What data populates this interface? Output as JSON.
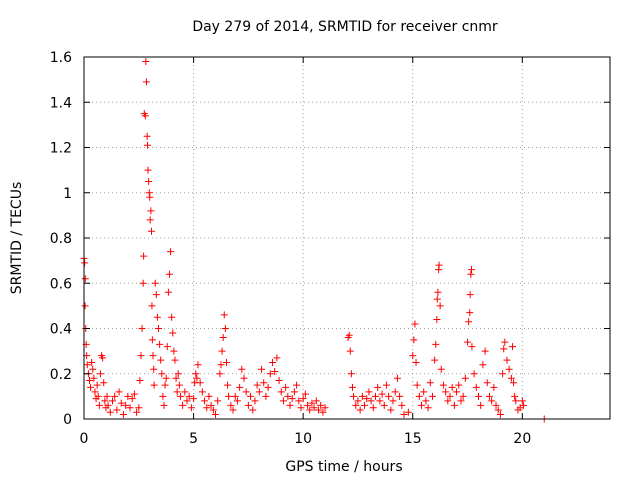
{
  "chart_data": {
    "type": "scatter",
    "title": "Day 279 of 2014, SRMTID for receiver cnmr",
    "xlabel": "GPS time / hours",
    "ylabel": "SRMTID / TECUs",
    "xlim": [
      0,
      24
    ],
    "ylim": [
      0,
      1.6
    ],
    "grid": true,
    "marker": "+",
    "marker_color": "#ff0000",
    "x_ticks": [
      {
        "value": 0,
        "label": "0"
      },
      {
        "value": 5,
        "label": "5"
      },
      {
        "value": 10,
        "label": "10"
      },
      {
        "value": 15,
        "label": "15"
      },
      {
        "value": 20,
        "label": "20"
      }
    ],
    "y_ticks": [
      {
        "value": 0,
        "label": "0"
      },
      {
        "value": 0.2,
        "label": "0.2"
      },
      {
        "value": 0.4,
        "label": "0.4"
      },
      {
        "value": 0.6,
        "label": "0.6"
      },
      {
        "value": 0.8,
        "label": "0.8"
      },
      {
        "value": 1.0,
        "label": "1"
      },
      {
        "value": 1.2,
        "label": "1.2"
      },
      {
        "value": 1.4,
        "label": "1.4"
      },
      {
        "value": 1.6,
        "label": "1.6"
      }
    ],
    "points": [
      [
        0.0,
        0.71
      ],
      [
        0.03,
        0.69
      ],
      [
        0.06,
        0.62
      ],
      [
        0.05,
        0.5
      ],
      [
        0.08,
        0.4
      ],
      [
        0.1,
        0.33
      ],
      [
        0.12,
        0.28
      ],
      [
        0.15,
        0.24
      ],
      [
        0.2,
        0.2
      ],
      [
        0.25,
        0.17
      ],
      [
        0.3,
        0.14
      ],
      [
        0.35,
        0.25
      ],
      [
        0.4,
        0.22
      ],
      [
        0.45,
        0.18
      ],
      [
        0.5,
        0.12
      ],
      [
        0.55,
        0.09
      ],
      [
        0.6,
        0.15
      ],
      [
        0.65,
        0.1
      ],
      [
        0.7,
        0.06
      ],
      [
        0.75,
        0.2
      ],
      [
        0.8,
        0.28
      ],
      [
        0.85,
        0.27
      ],
      [
        0.9,
        0.16
      ],
      [
        0.95,
        0.08
      ],
      [
        1.0,
        0.05
      ],
      [
        1.05,
        0.1
      ],
      [
        1.1,
        0.06
      ],
      [
        1.2,
        0.03
      ],
      [
        1.3,
        0.08
      ],
      [
        1.4,
        0.1
      ],
      [
        1.5,
        0.04
      ],
      [
        1.6,
        0.12
      ],
      [
        1.7,
        0.07
      ],
      [
        1.8,
        0.02
      ],
      [
        1.9,
        0.06
      ],
      [
        2.0,
        0.1
      ],
      [
        2.1,
        0.05
      ],
      [
        2.2,
        0.09
      ],
      [
        2.3,
        0.11
      ],
      [
        2.4,
        0.03
      ],
      [
        2.5,
        0.05
      ],
      [
        2.55,
        0.17
      ],
      [
        2.6,
        0.28
      ],
      [
        2.65,
        0.4
      ],
      [
        2.7,
        0.6
      ],
      [
        2.72,
        0.72
      ],
      [
        2.75,
        1.35
      ],
      [
        2.8,
        1.34
      ],
      [
        2.82,
        1.58
      ],
      [
        2.85,
        1.49
      ],
      [
        2.88,
        1.25
      ],
      [
        2.9,
        1.21
      ],
      [
        2.92,
        1.1
      ],
      [
        2.95,
        1.05
      ],
      [
        2.98,
        1.0
      ],
      [
        3.0,
        0.98
      ],
      [
        3.02,
        0.88
      ],
      [
        3.05,
        0.92
      ],
      [
        3.08,
        0.83
      ],
      [
        3.1,
        0.5
      ],
      [
        3.12,
        0.35
      ],
      [
        3.15,
        0.28
      ],
      [
        3.18,
        0.22
      ],
      [
        3.2,
        0.15
      ],
      [
        3.25,
        0.6
      ],
      [
        3.3,
        0.55
      ],
      [
        3.35,
        0.45
      ],
      [
        3.4,
        0.4
      ],
      [
        3.45,
        0.33
      ],
      [
        3.5,
        0.26
      ],
      [
        3.55,
        0.2
      ],
      [
        3.6,
        0.1
      ],
      [
        3.65,
        0.06
      ],
      [
        3.7,
        0.15
      ],
      [
        3.75,
        0.18
      ],
      [
        3.8,
        0.32
      ],
      [
        3.85,
        0.56
      ],
      [
        3.9,
        0.64
      ],
      [
        3.95,
        0.74
      ],
      [
        4.0,
        0.45
      ],
      [
        4.05,
        0.38
      ],
      [
        4.1,
        0.3
      ],
      [
        4.15,
        0.26
      ],
      [
        4.2,
        0.18
      ],
      [
        4.25,
        0.12
      ],
      [
        4.3,
        0.2
      ],
      [
        4.35,
        0.15
      ],
      [
        4.4,
        0.1
      ],
      [
        4.5,
        0.06
      ],
      [
        4.6,
        0.12
      ],
      [
        4.7,
        0.08
      ],
      [
        4.8,
        0.1
      ],
      [
        4.9,
        0.05
      ],
      [
        5.0,
        0.09
      ],
      [
        5.05,
        0.16
      ],
      [
        5.1,
        0.2
      ],
      [
        5.15,
        0.18
      ],
      [
        5.2,
        0.24
      ],
      [
        5.3,
        0.16
      ],
      [
        5.4,
        0.12
      ],
      [
        5.5,
        0.08
      ],
      [
        5.6,
        0.05
      ],
      [
        5.7,
        0.1
      ],
      [
        5.8,
        0.06
      ],
      [
        5.9,
        0.04
      ],
      [
        6.0,
        0.02
      ],
      [
        6.1,
        0.08
      ],
      [
        6.2,
        0.2
      ],
      [
        6.25,
        0.24
      ],
      [
        6.3,
        0.3
      ],
      [
        6.35,
        0.36
      ],
      [
        6.4,
        0.46
      ],
      [
        6.45,
        0.4
      ],
      [
        6.5,
        0.25
      ],
      [
        6.55,
        0.15
      ],
      [
        6.6,
        0.1
      ],
      [
        6.7,
        0.06
      ],
      [
        6.8,
        0.04
      ],
      [
        6.9,
        0.1
      ],
      [
        7.0,
        0.08
      ],
      [
        7.1,
        0.14
      ],
      [
        7.2,
        0.22
      ],
      [
        7.3,
        0.18
      ],
      [
        7.4,
        0.12
      ],
      [
        7.5,
        0.06
      ],
      [
        7.6,
        0.1
      ],
      [
        7.7,
        0.04
      ],
      [
        7.8,
        0.08
      ],
      [
        7.9,
        0.15
      ],
      [
        8.0,
        0.12
      ],
      [
        8.1,
        0.22
      ],
      [
        8.2,
        0.16
      ],
      [
        8.3,
        0.1
      ],
      [
        8.4,
        0.14
      ],
      [
        8.5,
        0.2
      ],
      [
        8.6,
        0.25
      ],
      [
        8.7,
        0.21
      ],
      [
        8.8,
        0.27
      ],
      [
        8.9,
        0.17
      ],
      [
        9.0,
        0.12
      ],
      [
        9.1,
        0.08
      ],
      [
        9.2,
        0.14
      ],
      [
        9.3,
        0.1
      ],
      [
        9.4,
        0.06
      ],
      [
        9.5,
        0.09
      ],
      [
        9.6,
        0.12
      ],
      [
        9.7,
        0.15
      ],
      [
        9.8,
        0.08
      ],
      [
        9.9,
        0.05
      ],
      [
        10.0,
        0.09
      ],
      [
        10.1,
        0.11
      ],
      [
        10.2,
        0.06
      ],
      [
        10.3,
        0.04
      ],
      [
        10.4,
        0.07
      ],
      [
        10.5,
        0.05
      ],
      [
        10.6,
        0.08
      ],
      [
        10.7,
        0.04
      ],
      [
        10.8,
        0.06
      ],
      [
        10.9,
        0.03
      ],
      [
        11.0,
        0.05
      ],
      [
        12.05,
        0.36
      ],
      [
        12.1,
        0.37
      ],
      [
        12.15,
        0.3
      ],
      [
        12.2,
        0.2
      ],
      [
        12.25,
        0.14
      ],
      [
        12.3,
        0.1
      ],
      [
        12.4,
        0.06
      ],
      [
        12.5,
        0.08
      ],
      [
        12.6,
        0.04
      ],
      [
        12.7,
        0.1
      ],
      [
        12.8,
        0.06
      ],
      [
        12.9,
        0.09
      ],
      [
        13.0,
        0.12
      ],
      [
        13.1,
        0.08
      ],
      [
        13.2,
        0.05
      ],
      [
        13.3,
        0.1
      ],
      [
        13.4,
        0.14
      ],
      [
        13.5,
        0.08
      ],
      [
        13.6,
        0.11
      ],
      [
        13.7,
        0.06
      ],
      [
        13.8,
        0.15
      ],
      [
        13.9,
        0.1
      ],
      [
        14.0,
        0.04
      ],
      [
        14.1,
        0.08
      ],
      [
        14.2,
        0.12
      ],
      [
        14.3,
        0.18
      ],
      [
        14.4,
        0.1
      ],
      [
        14.5,
        0.06
      ],
      [
        14.6,
        0.02
      ],
      [
        14.8,
        0.03
      ],
      [
        15.0,
        0.28
      ],
      [
        15.05,
        0.35
      ],
      [
        15.1,
        0.42
      ],
      [
        15.15,
        0.25
      ],
      [
        15.2,
        0.15
      ],
      [
        15.3,
        0.1
      ],
      [
        15.4,
        0.06
      ],
      [
        15.5,
        0.12
      ],
      [
        15.6,
        0.08
      ],
      [
        15.7,
        0.05
      ],
      [
        15.8,
        0.16
      ],
      [
        15.9,
        0.1
      ],
      [
        16.0,
        0.26
      ],
      [
        16.05,
        0.33
      ],
      [
        16.1,
        0.44
      ],
      [
        16.12,
        0.53
      ],
      [
        16.15,
        0.56
      ],
      [
        16.18,
        0.66
      ],
      [
        16.2,
        0.68
      ],
      [
        16.25,
        0.5
      ],
      [
        16.3,
        0.22
      ],
      [
        16.4,
        0.15
      ],
      [
        16.5,
        0.12
      ],
      [
        16.6,
        0.08
      ],
      [
        16.7,
        0.1
      ],
      [
        16.8,
        0.14
      ],
      [
        16.9,
        0.06
      ],
      [
        17.0,
        0.12
      ],
      [
        17.1,
        0.15
      ],
      [
        17.2,
        0.08
      ],
      [
        17.3,
        0.1
      ],
      [
        17.4,
        0.18
      ],
      [
        17.5,
        0.34
      ],
      [
        17.55,
        0.43
      ],
      [
        17.6,
        0.47
      ],
      [
        17.62,
        0.55
      ],
      [
        17.65,
        0.64
      ],
      [
        17.68,
        0.66
      ],
      [
        17.7,
        0.32
      ],
      [
        17.8,
        0.2
      ],
      [
        17.9,
        0.14
      ],
      [
        18.0,
        0.1
      ],
      [
        18.1,
        0.06
      ],
      [
        18.2,
        0.24
      ],
      [
        18.3,
        0.3
      ],
      [
        18.4,
        0.16
      ],
      [
        18.5,
        0.1
      ],
      [
        18.6,
        0.08
      ],
      [
        18.7,
        0.14
      ],
      [
        18.8,
        0.06
      ],
      [
        18.9,
        0.04
      ],
      [
        19.0,
        0.02
      ],
      [
        19.1,
        0.2
      ],
      [
        19.15,
        0.31
      ],
      [
        19.2,
        0.34
      ],
      [
        19.3,
        0.26
      ],
      [
        19.4,
        0.22
      ],
      [
        19.5,
        0.18
      ],
      [
        19.55,
        0.32
      ],
      [
        19.6,
        0.16
      ],
      [
        19.65,
        0.1
      ],
      [
        19.7,
        0.08
      ],
      [
        19.8,
        0.04
      ],
      [
        19.9,
        0.05
      ],
      [
        20.0,
        0.08
      ],
      [
        20.05,
        0.06
      ],
      [
        21.0,
        0.0
      ]
    ]
  }
}
